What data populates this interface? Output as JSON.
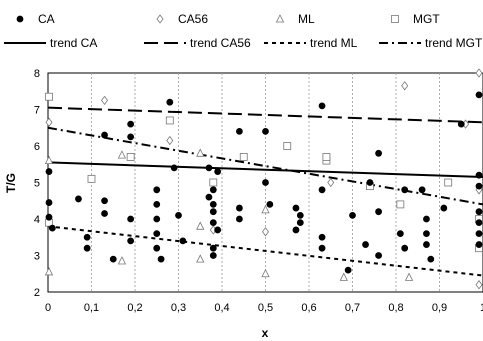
{
  "chart_data": {
    "type": "scatter",
    "xlabel": "x",
    "ylabel": "T/G",
    "xlim": [
      0,
      1
    ],
    "ylim": [
      2,
      8
    ],
    "x_ticks": [
      0,
      0.1,
      0.2,
      0.3,
      0.4,
      0.5,
      0.6,
      0.7,
      0.8,
      0.9,
      1
    ],
    "x_tick_labels": [
      "0",
      "0,1",
      "0,2",
      "0,3",
      "0,4",
      "0,5",
      "0,6",
      "0,7",
      "0,8",
      "0,9",
      "1"
    ],
    "y_ticks": [
      2,
      3,
      4,
      5,
      6,
      7,
      8
    ],
    "y_tick_labels": [
      "2",
      "3",
      "4",
      "5",
      "6",
      "7",
      "8"
    ],
    "grid": "vertical-dashed",
    "legend_position": "top",
    "series": [
      {
        "name": "CA",
        "marker": "filled-circle",
        "color": "#000000",
        "points": [
          [
            0.0,
            5.3
          ],
          [
            0.0,
            4.45
          ],
          [
            0.0,
            4.05
          ],
          [
            0.01,
            3.75
          ],
          [
            0.07,
            4.55
          ],
          [
            0.09,
            3.5
          ],
          [
            0.09,
            3.2
          ],
          [
            0.13,
            6.3
          ],
          [
            0.13,
            4.5
          ],
          [
            0.13,
            4.15
          ],
          [
            0.15,
            2.9
          ],
          [
            0.19,
            6.6
          ],
          [
            0.19,
            6.25
          ],
          [
            0.19,
            4.0
          ],
          [
            0.19,
            3.4
          ],
          [
            0.25,
            4.8
          ],
          [
            0.25,
            4.4
          ],
          [
            0.25,
            4.0
          ],
          [
            0.25,
            3.6
          ],
          [
            0.25,
            3.2
          ],
          [
            0.26,
            2.9
          ],
          [
            0.28,
            7.2
          ],
          [
            0.29,
            5.4
          ],
          [
            0.3,
            4.1
          ],
          [
            0.31,
            3.4
          ],
          [
            0.37,
            5.4
          ],
          [
            0.37,
            4.6
          ],
          [
            0.38,
            4.8
          ],
          [
            0.38,
            4.4
          ],
          [
            0.38,
            4.2
          ],
          [
            0.38,
            3.9
          ],
          [
            0.38,
            3.2
          ],
          [
            0.38,
            3.0
          ],
          [
            0.39,
            5.3
          ],
          [
            0.39,
            3.7
          ],
          [
            0.44,
            6.4
          ],
          [
            0.44,
            4.3
          ],
          [
            0.44,
            4.0
          ],
          [
            0.5,
            6.4
          ],
          [
            0.5,
            5.0
          ],
          [
            0.51,
            4.4
          ],
          [
            0.57,
            4.3
          ],
          [
            0.57,
            3.7
          ],
          [
            0.58,
            4.1
          ],
          [
            0.58,
            3.9
          ],
          [
            0.63,
            7.1
          ],
          [
            0.63,
            4.8
          ],
          [
            0.63,
            3.5
          ],
          [
            0.63,
            3.2
          ],
          [
            0.69,
            2.6
          ],
          [
            0.7,
            4.1
          ],
          [
            0.73,
            3.3
          ],
          [
            0.74,
            5.0
          ],
          [
            0.76,
            5.8
          ],
          [
            0.76,
            4.2
          ],
          [
            0.76,
            3.0
          ],
          [
            0.81,
            3.6
          ],
          [
            0.82,
            4.8
          ],
          [
            0.82,
            3.2
          ],
          [
            0.86,
            4.8
          ],
          [
            0.87,
            4.0
          ],
          [
            0.87,
            3.6
          ],
          [
            0.87,
            3.3
          ],
          [
            0.88,
            2.9
          ],
          [
            0.91,
            4.3
          ],
          [
            0.95,
            6.6
          ],
          [
            1.0,
            7.4
          ],
          [
            1.0,
            5.2
          ],
          [
            1.0,
            4.9
          ],
          [
            1.0,
            4.2
          ],
          [
            1.0,
            3.9
          ],
          [
            1.0,
            3.6
          ],
          [
            1.0,
            3.3
          ]
        ]
      },
      {
        "name": "CA56",
        "marker": "open-diamond",
        "color": "#000000",
        "points": [
          [
            0.0,
            6.65
          ],
          [
            0.13,
            7.25
          ],
          [
            0.28,
            6.15
          ],
          [
            0.38,
            3.7
          ],
          [
            0.5,
            3.65
          ],
          [
            0.65,
            5.0
          ],
          [
            0.82,
            7.65
          ],
          [
            0.96,
            6.6
          ],
          [
            1.0,
            8.0
          ],
          [
            1.0,
            4.8
          ],
          [
            1.0,
            2.2
          ]
        ]
      },
      {
        "name": "ML",
        "marker": "open-triangle",
        "color": "#000000",
        "points": [
          [
            0.0,
            5.6
          ],
          [
            0.0,
            2.55
          ],
          [
            0.17,
            5.75
          ],
          [
            0.17,
            2.85
          ],
          [
            0.35,
            5.8
          ],
          [
            0.35,
            3.8
          ],
          [
            0.35,
            2.9
          ],
          [
            0.5,
            4.25
          ],
          [
            0.5,
            2.5
          ],
          [
            0.68,
            2.4
          ],
          [
            0.83,
            2.4
          ]
        ]
      },
      {
        "name": "MGT",
        "marker": "open-square",
        "color": "#000000",
        "points": [
          [
            0.0,
            7.35
          ],
          [
            0.0,
            3.9
          ],
          [
            0.1,
            5.1
          ],
          [
            0.19,
            5.7
          ],
          [
            0.28,
            6.7
          ],
          [
            0.38,
            5.0
          ],
          [
            0.45,
            5.7
          ],
          [
            0.55,
            6.0
          ],
          [
            0.64,
            5.6
          ],
          [
            0.64,
            5.7
          ],
          [
            0.74,
            4.9
          ],
          [
            0.81,
            4.4
          ],
          [
            0.92,
            5.0
          ],
          [
            1.0,
            4.0
          ],
          [
            1.0,
            3.2
          ]
        ]
      }
    ],
    "trends": [
      {
        "name": "trend CA",
        "style": "solid",
        "color": "#000000",
        "x": [
          0,
          1
        ],
        "y": [
          5.55,
          5.15
        ]
      },
      {
        "name": "trend CA56",
        "style": "long-dash",
        "color": "#000000",
        "x": [
          0,
          1
        ],
        "y": [
          7.05,
          6.65
        ]
      },
      {
        "name": "trend ML",
        "style": "short-dash",
        "color": "#000000",
        "x": [
          0,
          1
        ],
        "y": [
          3.8,
          2.45
        ]
      },
      {
        "name": "trend MGT",
        "style": "dash-dot",
        "color": "#000000",
        "x": [
          0,
          1
        ],
        "y": [
          6.5,
          4.4
        ]
      }
    ]
  }
}
